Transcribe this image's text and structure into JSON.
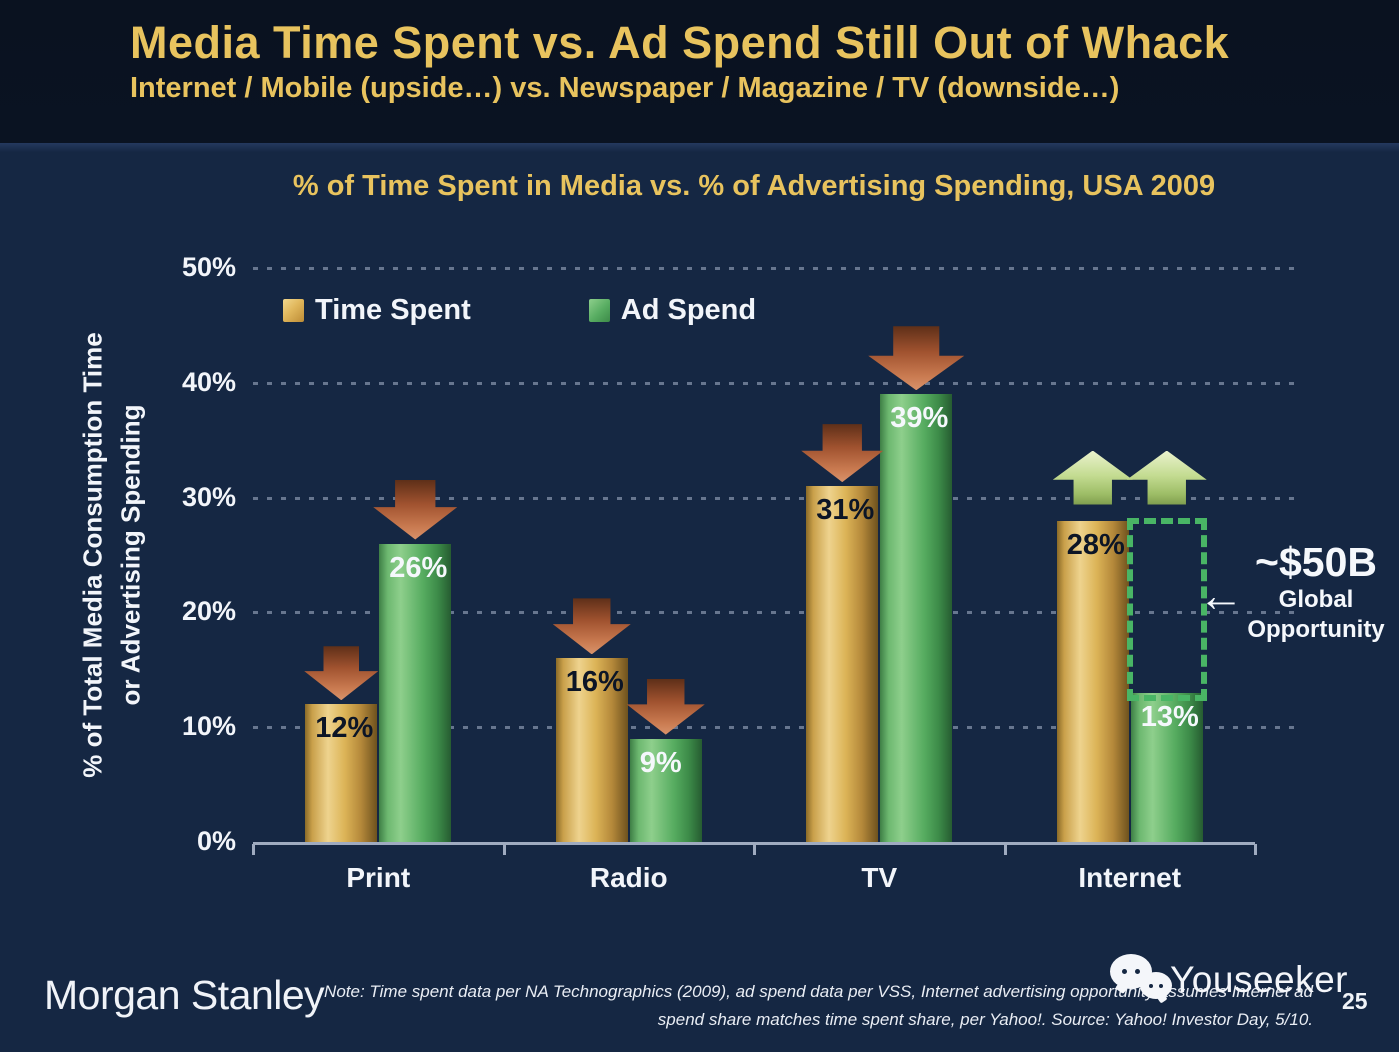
{
  "header": {
    "title": "Media Time Spent vs. Ad Spend Still Out of Whack",
    "subtitle": "Internet / Mobile (upside…) vs. Newspaper / Magazine / TV (downside…)"
  },
  "chart_data": {
    "type": "bar",
    "title": "% of Time Spent in Media vs. % of Advertising Spending, USA 2009",
    "categories": [
      "Print",
      "Radio",
      "TV",
      "Internet"
    ],
    "series": [
      {
        "name": "Time Spent",
        "color": "gold",
        "values": [
          12,
          16,
          31,
          28
        ]
      },
      {
        "name": "Ad Spend",
        "color": "green",
        "values": [
          26,
          9,
          39,
          13
        ]
      }
    ],
    "value_suffix": "%",
    "ylabel_line1": "% of Total Media Consumption Time",
    "ylabel_line2": "or Advertising Spending",
    "ylim": [
      0,
      50
    ],
    "yticks": [
      0,
      10,
      20,
      30,
      40,
      50
    ],
    "ytick_suffix": "%",
    "grid": "dotted-horizontal",
    "legend_position": "top-left-inside",
    "down_arrows": [
      {
        "category": "Print",
        "series": "Time Spent"
      },
      {
        "category": "Print",
        "series": "Ad Spend"
      },
      {
        "category": "Radio",
        "series": "Time Spent"
      },
      {
        "category": "Radio",
        "series": "Ad Spend"
      },
      {
        "category": "TV",
        "series": "Time Spent"
      },
      {
        "category": "TV",
        "series": "Ad Spend"
      }
    ],
    "up_arrows": [
      {
        "category": "Internet",
        "series": "Time Spent"
      },
      {
        "category": "Internet",
        "series": "Ad Spend"
      }
    ],
    "gap_box": {
      "category": "Internet",
      "from_value": 13,
      "to_value": 28
    },
    "annotation": {
      "value": "~$50B",
      "label_line1": "Global",
      "label_line2": "Opportunity",
      "arrow": "←"
    },
    "colors": {
      "gold_bar": "#d9ad4a",
      "green_bar": "#4da45a",
      "title_gold": "#e8c35e",
      "down_arrow_red": "#b05f3d",
      "up_arrow_green": "#c4dc92",
      "gap_box_green": "#49b565",
      "background": "#152743",
      "header_background": "#0a1322"
    }
  },
  "footer": {
    "brand": "Morgan Stanley",
    "note_line1": "Note: Time spent data per NA Technographics (2009), ad spend data per VSS, Internet advertising opportunity assumes Internet ad",
    "note_line2": "spend share matches time spent share, per Yahoo!. Source: Yahoo! Investor Day, 5/10.",
    "watermark": "Youseeker",
    "page_number": "25"
  }
}
